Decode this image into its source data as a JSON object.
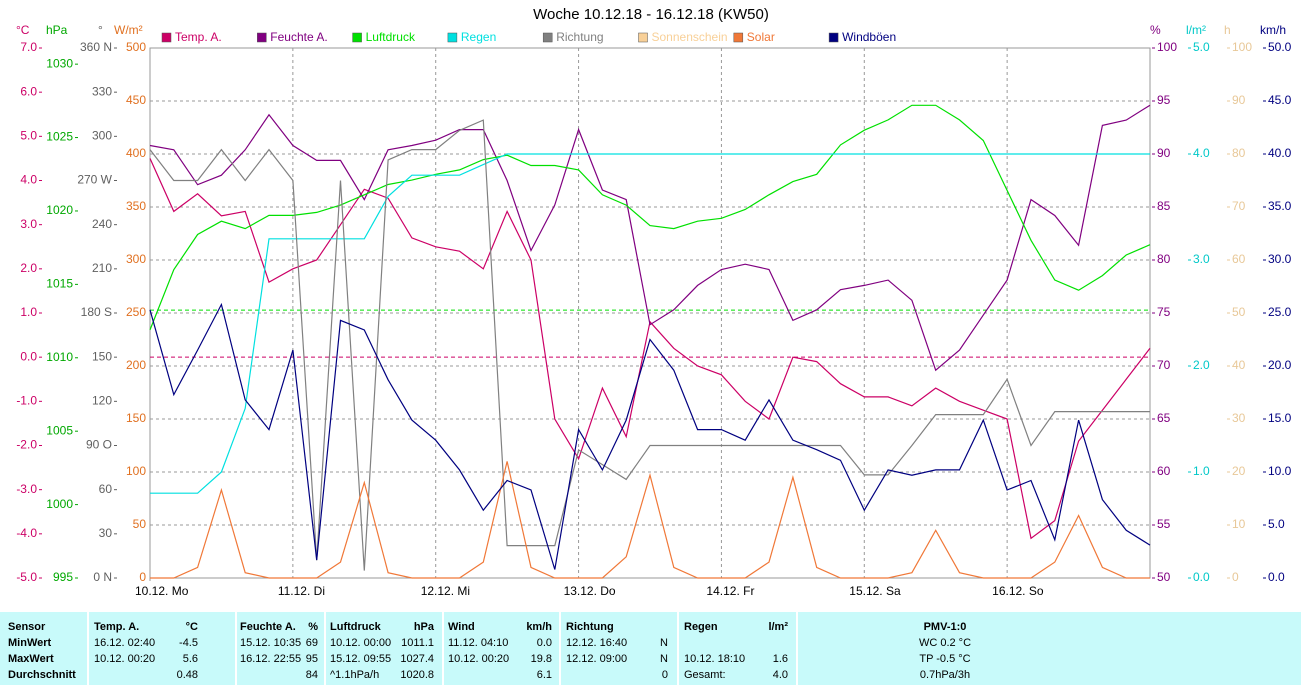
{
  "chart_data": {
    "type": "line",
    "title": "Woche 10.12.18 - 16.12.18 (KW50)",
    "xlim": [
      0,
      168
    ],
    "xticks": [
      {
        "value": 0,
        "label": "10.12. Mo"
      },
      {
        "value": 24,
        "label": "11.12. Di"
      },
      {
        "value": 48,
        "label": "12.12. Mi"
      },
      {
        "value": 72,
        "label": "13.12. Do"
      },
      {
        "value": 96,
        "label": "14.12. Fr"
      },
      {
        "value": 120,
        "label": "15.12. Sa"
      },
      {
        "value": 144,
        "label": "16.12. So"
      }
    ],
    "grid": true,
    "axes": [
      {
        "unit": "°C",
        "side": "left",
        "color": "#cc0066",
        "lim": [
          -5,
          7
        ],
        "ticks": [
          {
            "value": -5,
            "label": "-5.0"
          },
          {
            "value": -4,
            "label": "-4.0"
          },
          {
            "value": -3,
            "label": "-3.0"
          },
          {
            "value": -2,
            "label": "-2.0"
          },
          {
            "value": -1,
            "label": "-1.0"
          },
          {
            "value": 0,
            "label": "0.0"
          },
          {
            "value": 1,
            "label": "1.0"
          },
          {
            "value": 2,
            "label": "2.0"
          },
          {
            "value": 3,
            "label": "3.0"
          },
          {
            "value": 4,
            "label": "4.0"
          },
          {
            "value": 5,
            "label": "5.0"
          },
          {
            "value": 6,
            "label": "6.0"
          },
          {
            "value": 7,
            "label": "7.0"
          }
        ]
      },
      {
        "unit": "hPa",
        "side": "left",
        "color": "#00a800",
        "lim": [
          995,
          1031.1
        ],
        "ticks": [
          995,
          1000,
          1005,
          1010,
          1015,
          1020,
          1025,
          1030
        ]
      },
      {
        "unit": "°",
        "side": "left",
        "color": "#606060",
        "lim": [
          0,
          360
        ],
        "ticks": [
          {
            "value": 0,
            "label": "0 N"
          },
          30,
          60,
          {
            "value": 90,
            "label": "90 O"
          },
          120,
          150,
          {
            "value": 180,
            "label": "180 S"
          },
          210,
          240,
          {
            "value": 270,
            "label": "270 W"
          },
          300,
          330,
          {
            "value": 360,
            "label": "360 N"
          }
        ]
      },
      {
        "unit": "W/m²",
        "side": "left",
        "color": "#e07020",
        "lim": [
          0,
          500
        ],
        "ticks": [
          0,
          50,
          100,
          150,
          200,
          250,
          300,
          350,
          400,
          450,
          500
        ],
        "grid": true
      },
      {
        "unit": "%",
        "side": "right",
        "color": "#800080",
        "lim": [
          50,
          100
        ],
        "ticks": [
          50,
          55,
          60,
          65,
          70,
          75,
          80,
          85,
          90,
          95,
          100
        ]
      },
      {
        "unit": "l/m²",
        "side": "right",
        "color": "#00c8c8",
        "lim": [
          0,
          5
        ],
        "ticks": [
          {
            "value": 0,
            "label": "0.0"
          },
          {
            "value": 1,
            "label": "1.0"
          },
          {
            "value": 2,
            "label": "2.0"
          },
          {
            "value": 3,
            "label": "3.0"
          },
          {
            "value": 4,
            "label": "4.0"
          },
          {
            "value": 5,
            "label": "5.0"
          }
        ]
      },
      {
        "unit": "h",
        "side": "right",
        "color": "#e8c898",
        "lim": [
          0,
          100
        ],
        "ticks": [
          0,
          10,
          20,
          30,
          40,
          50,
          60,
          70,
          80,
          90,
          100
        ]
      },
      {
        "unit": "km/h",
        "side": "right",
        "color": "#000080",
        "lim": [
          0,
          50
        ],
        "ticks": [
          {
            "value": 0,
            "label": "0.0"
          },
          {
            "value": 5,
            "label": "5.0"
          },
          {
            "value": 10,
            "label": "10.0"
          },
          {
            "value": 15,
            "label": "15.0"
          },
          {
            "value": 20,
            "label": "20.0"
          },
          {
            "value": 25,
            "label": "25.0"
          },
          {
            "value": 30,
            "label": "30.0"
          },
          {
            "value": 35,
            "label": "35.0"
          },
          {
            "value": 40,
            "label": "40.0"
          },
          {
            "value": 45,
            "label": "45.0"
          },
          {
            "value": 50,
            "label": "50.0"
          }
        ]
      }
    ],
    "reference_lines": [
      {
        "axis": "hPa",
        "value": 1013.25,
        "color": "#00e000"
      },
      {
        "axis": "°C",
        "value": 0,
        "color": "#cc0066"
      }
    ],
    "x": [
      0,
      4,
      8,
      12,
      16,
      20,
      24,
      28,
      32,
      36,
      40,
      44,
      48,
      52,
      56,
      60,
      64,
      68,
      72,
      76,
      80,
      84,
      88,
      92,
      96,
      100,
      104,
      108,
      112,
      116,
      120,
      124,
      128,
      132,
      136,
      140,
      144,
      148,
      152,
      156,
      160,
      164,
      168
    ],
    "series": [
      {
        "name": "Temp. A.",
        "color": "#cc0066",
        "axis": "°C",
        "values": [
          4.5,
          3.3,
          3.7,
          3.2,
          3.3,
          1.7,
          2.0,
          2.2,
          3.0,
          3.8,
          3.6,
          2.7,
          2.5,
          2.4,
          2.0,
          3.3,
          2.2,
          -1.4,
          -2.3,
          -0.7,
          -1.8,
          0.8,
          0.2,
          -0.2,
          -0.4,
          -1.0,
          -1.4,
          0.0,
          -0.1,
          -0.6,
          -0.9,
          -0.9,
          -1.1,
          -0.7,
          -1.0,
          -1.2,
          -1.4,
          -4.1,
          -3.7,
          -1.9,
          -1.2,
          -0.5,
          0.2
        ]
      },
      {
        "name": "Feuchte A.",
        "color": "#800080",
        "axis": "%",
        "values": [
          90.8,
          90.4,
          87.1,
          88.0,
          90.4,
          93.7,
          90.8,
          89.4,
          89.4,
          85.7,
          90.4,
          90.8,
          91.3,
          92.3,
          92.3,
          87.5,
          80.9,
          85.2,
          92.3,
          86.6,
          85.7,
          73.9,
          75.3,
          77.6,
          79.1,
          79.6,
          79.1,
          74.3,
          75.3,
          77.2,
          77.6,
          78.1,
          76.2,
          69.6,
          71.5,
          74.8,
          78.1,
          85.7,
          84.2,
          81.4,
          92.7,
          93.2,
          94.6
        ]
      },
      {
        "name": "Luftdruck",
        "color": "#00e000",
        "axis": "hPa",
        "values": [
          1011.9,
          1016.0,
          1018.4,
          1019.3,
          1018.8,
          1019.7,
          1019.7,
          1019.9,
          1020.4,
          1021.1,
          1021.8,
          1022.1,
          1022.5,
          1022.8,
          1023.5,
          1023.8,
          1023.1,
          1023.1,
          1022.8,
          1021.1,
          1020.4,
          1019.0,
          1018.8,
          1019.3,
          1019.5,
          1020.1,
          1021.1,
          1022.0,
          1022.5,
          1024.5,
          1025.5,
          1026.2,
          1027.2,
          1027.2,
          1026.2,
          1024.8,
          1021.4,
          1018.0,
          1015.3,
          1014.6,
          1015.6,
          1017.0,
          1017.7
        ]
      },
      {
        "name": "Regen",
        "color": "#00e0e0",
        "axis": "l/m²",
        "values": [
          0.8,
          0.8,
          0.8,
          1.0,
          1.6,
          3.2,
          3.2,
          3.2,
          3.2,
          3.2,
          3.6,
          3.8,
          3.8,
          3.8,
          3.9,
          4.0,
          4.0,
          4.0,
          4.0,
          4.0,
          4.0,
          4.0,
          4.0,
          4.0,
          4.0,
          4.0,
          4.0,
          4.0,
          4.0,
          4.0,
          4.0,
          4.0,
          4.0,
          4.0,
          4.0,
          4.0,
          4.0,
          4.0,
          4.0,
          4.0,
          4.0,
          4.0,
          4.0
        ]
      },
      {
        "name": "Richtung",
        "color": "#808080",
        "axis": "°",
        "values": [
          291,
          270,
          270,
          291,
          270,
          291,
          270,
          12,
          270,
          5,
          284,
          291,
          291,
          304,
          311,
          22,
          22,
          22,
          87,
          77,
          67,
          90,
          90,
          90,
          90,
          90,
          90,
          90,
          90,
          90,
          70,
          70,
          90,
          111,
          111,
          111,
          135,
          90,
          113,
          113,
          113,
          113,
          113
        ]
      },
      {
        "name": "Sonnenschein",
        "color": "#f8d098",
        "axis": "h",
        "values": [
          null,
          null,
          null,
          null,
          null,
          null,
          null,
          null,
          null,
          null,
          null,
          null,
          null,
          null,
          null,
          null,
          null,
          null,
          null,
          null,
          null,
          null,
          null,
          null,
          null,
          null,
          null,
          null,
          null,
          null,
          null,
          null,
          null,
          null,
          null,
          null,
          null,
          null,
          null,
          null,
          null,
          null,
          null
        ]
      },
      {
        "name": "Solar",
        "color": "#f07838",
        "axis": "W/m²",
        "values": [
          0,
          0,
          10,
          83,
          5,
          0,
          0,
          0,
          15,
          90,
          5,
          0,
          0,
          0,
          15,
          110,
          10,
          0,
          0,
          0,
          20,
          97,
          10,
          0,
          0,
          0,
          15,
          95,
          10,
          0,
          0,
          0,
          5,
          45,
          5,
          0,
          0,
          0,
          15,
          59,
          10,
          0,
          0
        ]
      },
      {
        "name": "Windböen",
        "color": "#000080",
        "axis": "km/h",
        "values": [
          25.3,
          17.3,
          21.5,
          25.8,
          16.8,
          14.0,
          21.5,
          1.7,
          24.3,
          23.4,
          18.7,
          14.9,
          13.0,
          10.2,
          6.4,
          9.2,
          8.3,
          0.8,
          14.0,
          10.2,
          14.9,
          22.5,
          19.6,
          14.0,
          14.0,
          13.0,
          16.8,
          13.0,
          12.1,
          11.1,
          6.4,
          10.2,
          9.7,
          10.2,
          10.2,
          14.9,
          8.3,
          9.2,
          3.6,
          14.9,
          7.4,
          4.5,
          3.1
        ]
      }
    ]
  },
  "table": {
    "rows": [
      [
        "Sensor",
        "Temp. A.",
        "°C",
        "Feuchte A.",
        "%",
        "Luftdruck",
        "hPa",
        "Wind",
        "km/h",
        "Richtung",
        null,
        "Regen",
        "l/m²",
        "PMV-1:0"
      ],
      [
        "MinWert",
        "16.12. 02:40",
        "-4.5",
        "15.12. 10:35",
        "69",
        "10.12. 00:00",
        "1011.1",
        "11.12. 04:10",
        "0.0",
        "12.12. 16:40",
        "N",
        null,
        null,
        "WC 0.2 °C"
      ],
      [
        "MaxWert",
        "10.12. 00:20",
        "5.6",
        "16.12. 22:55",
        "95",
        "15.12. 09:55",
        "1027.4",
        "10.12. 00:20",
        "19.8",
        "12.12. 09:00",
        "N",
        "10.12. 18:10",
        "1.6",
        "TP -0.5 °C"
      ],
      [
        "Durchschnitt",
        null,
        "0.48",
        null,
        "84",
        "^1.1hPa/h",
        "1020.8",
        null,
        "6.1",
        null,
        "0",
        "Gesamt:",
        "4.0",
        "0.7hPa/3h"
      ]
    ]
  }
}
